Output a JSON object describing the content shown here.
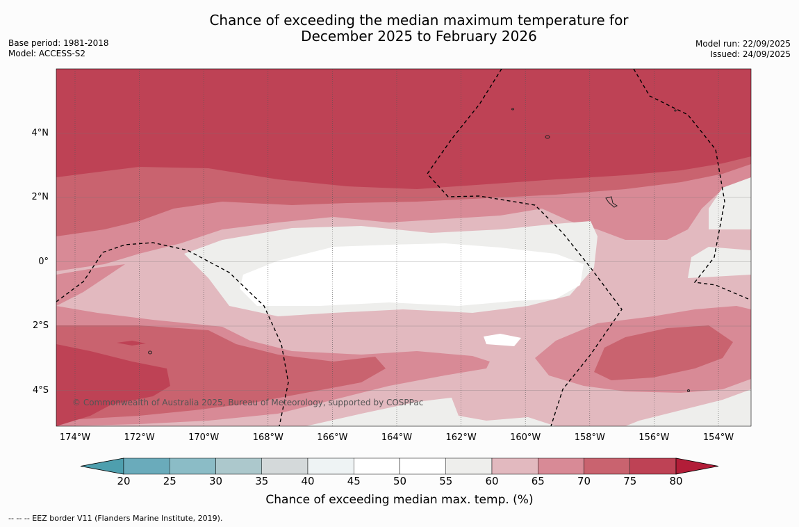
{
  "title_line1": "Chance of exceeding the median maximum temperature for",
  "title_line2": "December 2025 to February 2026",
  "meta_left": {
    "base_period": "Base period: 1981-2018",
    "model": "Model: ACCESS-S2"
  },
  "meta_right": {
    "model_run": "Model run: 22/09/2025",
    "issued": "Issued: 24/09/2025"
  },
  "latitudes": [
    {
      "label": "4°N",
      "value": 4
    },
    {
      "label": "2°N",
      "value": 2
    },
    {
      "label": "0°",
      "value": 0
    },
    {
      "label": "2°S",
      "value": -2
    },
    {
      "label": "4°S",
      "value": -4
    }
  ],
  "longitudes": [
    {
      "label": "174°W",
      "value": -174
    },
    {
      "label": "172°W",
      "value": -172
    },
    {
      "label": "170°W",
      "value": -170
    },
    {
      "label": "168°W",
      "value": -168
    },
    {
      "label": "166°W",
      "value": -166
    },
    {
      "label": "164°W",
      "value": -164
    },
    {
      "label": "162°W",
      "value": -162
    },
    {
      "label": "160°W",
      "value": -160
    },
    {
      "label": "158°W",
      "value": -158
    },
    {
      "label": "156°W",
      "value": -156
    },
    {
      "label": "154°W",
      "value": -154
    }
  ],
  "colorbar": {
    "ticks": [
      "20",
      "25",
      "30",
      "35",
      "40",
      "45",
      "50",
      "55",
      "60",
      "65",
      "70",
      "75",
      "80"
    ],
    "colors": [
      "#6aabbb",
      "#8bbcc6",
      "#acc8cc",
      "#d4d9da",
      "#eef3f4",
      "#ffffff",
      "#ffffff",
      "#eeeeec",
      "#e2b9bf",
      "#d88a96",
      "#c9636f",
      "#be4255"
    ],
    "under_color": "#4e9fae",
    "over_color": "#b21d38",
    "label": "Chance of exceeding median max. temp. (%)"
  },
  "credit": "© Commonwealth of Australia 2025, Bureau of Meteorology, supported by COSPPac",
  "legend": "--  --  -- EEZ border V11 (Flanders Marine Institute, 2019)."
}
